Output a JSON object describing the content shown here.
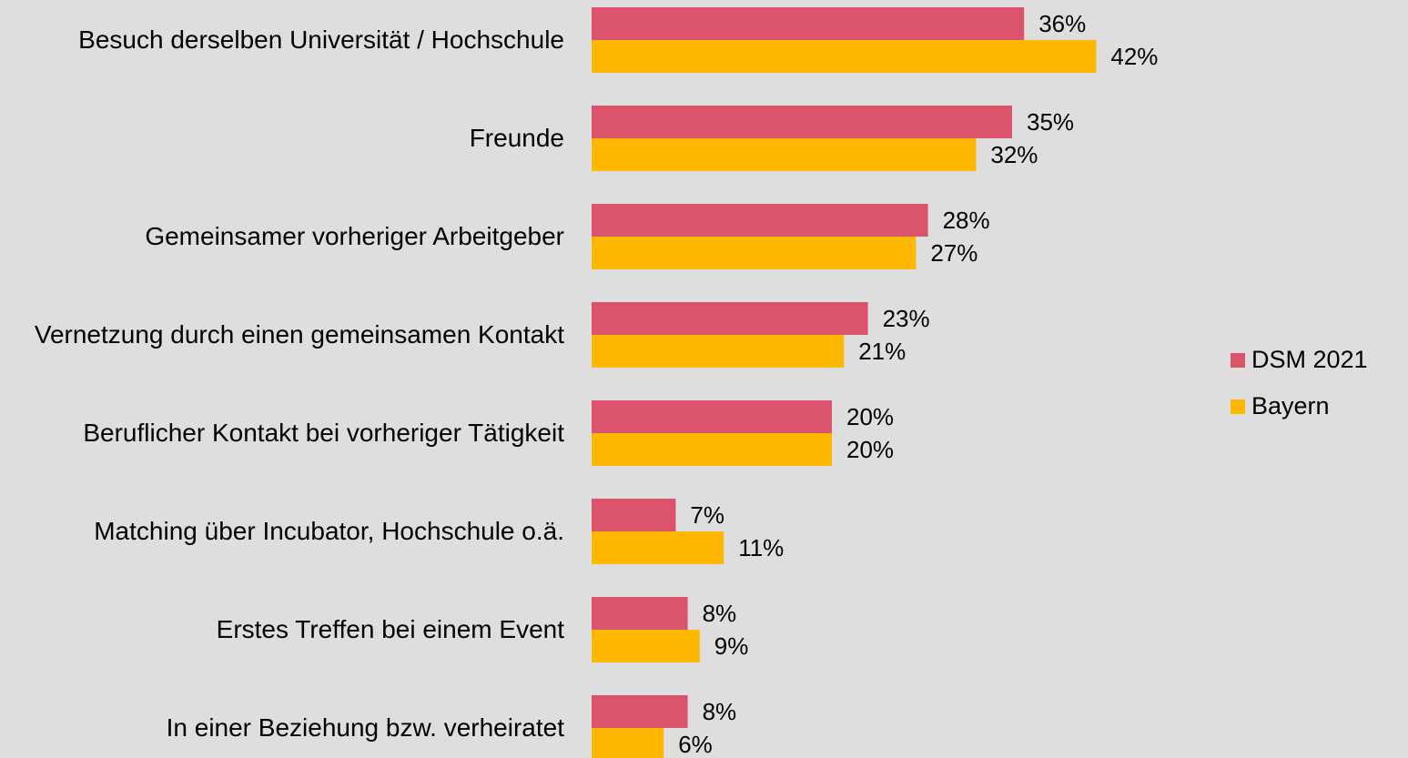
{
  "chart_data": {
    "type": "bar",
    "orientation": "horizontal",
    "categories": [
      "Besuch derselben Universität / Hochschule",
      "Freunde",
      "Gemeinsamer vorheriger Arbeitgeber",
      "Vernetzung durch einen gemeinsamen Kontakt",
      "Beruflicher Kontakt bei vorheriger Tätigkeit",
      "Matching über Incubator, Hochschule o.ä.",
      "Erstes Treffen bei einem Event",
      "In einer Beziehung bzw. verheiratet"
    ],
    "series": [
      {
        "name": "DSM 2021",
        "color": "#dc546c",
        "values": [
          36,
          35,
          28,
          23,
          20,
          7,
          8,
          8
        ],
        "value_labels": [
          "36%",
          "35%",
          "28%",
          "23%",
          "20%",
          "7%",
          "8%",
          "8%"
        ]
      },
      {
        "name": "Bayern",
        "color": "#ffb800",
        "values": [
          42,
          32,
          27,
          21,
          20,
          11,
          9,
          6
        ],
        "value_labels": [
          "42%",
          "32%",
          "27%",
          "21%",
          "20%",
          "11%",
          "9%",
          "6%"
        ]
      }
    ],
    "legend": "right"
  }
}
